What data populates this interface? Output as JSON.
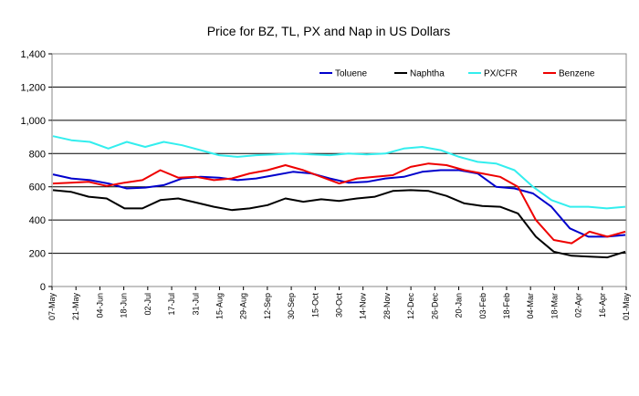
{
  "chart_data": {
    "type": "line",
    "title": "Price for BZ, TL, PX and Nap in US Dollars",
    "xlabel": "",
    "ylabel": "",
    "ylim": [
      0,
      1400
    ],
    "yticks": [
      "0",
      "200",
      "400",
      "600",
      "800",
      "1,000",
      "1,200",
      "1,400"
    ],
    "ytick_values": [
      0,
      200,
      400,
      600,
      800,
      1000,
      1200,
      1400
    ],
    "xticks": [
      "07-May",
      "21-May",
      "04-Jun",
      "18-Jun",
      "02-Jul",
      "17-Jul",
      "31-Jul",
      "15-Aug",
      "29-Aug",
      "12-Sep",
      "30-Sep",
      "15-Oct",
      "30-Oct",
      "14-Nov",
      "28-Nov",
      "12-Dec",
      "26-Dec",
      "20-Jan",
      "03-Feb",
      "18-Feb",
      "04-Mar",
      "18-Mar",
      "02-Apr",
      "16-Apr",
      "01-May"
    ],
    "legend_position": "top-right",
    "series": [
      {
        "name": "Toluene",
        "color": "#0000cc",
        "values": [
          675,
          650,
          640,
          620,
          590,
          595,
          610,
          650,
          660,
          655,
          640,
          650,
          670,
          690,
          680,
          650,
          625,
          630,
          650,
          660,
          690,
          700,
          700,
          680,
          600,
          590,
          560,
          480,
          350,
          300,
          300,
          310
        ]
      },
      {
        "name": "Naphtha",
        "color": "#000000",
        "values": [
          580,
          570,
          540,
          530,
          470,
          470,
          520,
          530,
          505,
          480,
          460,
          470,
          490,
          530,
          510,
          525,
          515,
          530,
          540,
          575,
          580,
          575,
          545,
          500,
          485,
          480,
          440,
          300,
          210,
          185,
          180,
          175,
          210
        ]
      },
      {
        "name": "PX/CFR",
        "color": "#33eeee",
        "values": [
          905,
          880,
          870,
          830,
          870,
          840,
          870,
          850,
          820,
          790,
          780,
          790,
          795,
          800,
          795,
          790,
          800,
          795,
          800,
          830,
          840,
          820,
          780,
          750,
          740,
          700,
          600,
          520,
          480,
          480,
          470,
          480
        ]
      },
      {
        "name": "Benzene",
        "color": "#ee0000",
        "values": [
          620,
          625,
          630,
          605,
          625,
          640,
          700,
          655,
          660,
          640,
          650,
          680,
          700,
          730,
          700,
          660,
          620,
          650,
          660,
          670,
          720,
          740,
          730,
          700,
          680,
          660,
          600,
          400,
          280,
          260,
          330,
          300,
          330
        ]
      }
    ]
  }
}
